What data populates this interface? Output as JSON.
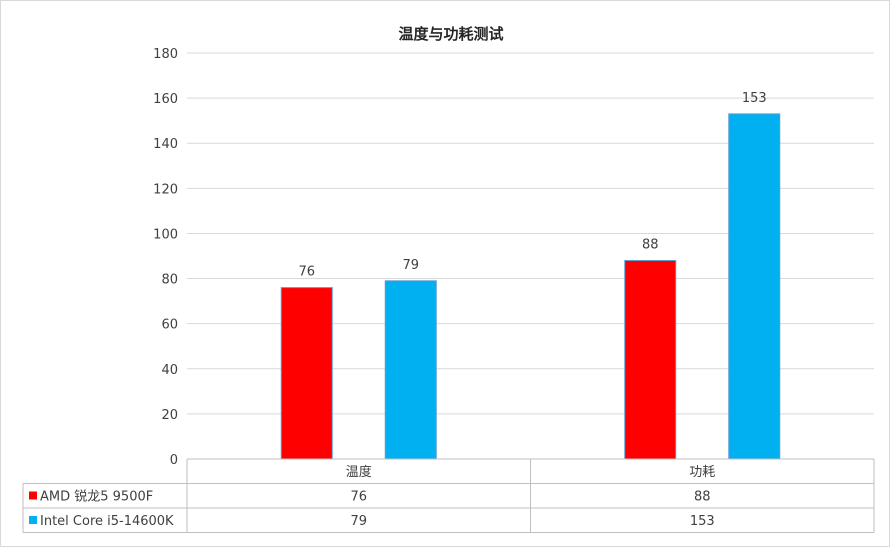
{
  "chart_data": {
    "type": "bar",
    "title": "温度与功耗测试",
    "categories": [
      "温度",
      "功耗"
    ],
    "series": [
      {
        "name": "AMD 锐龙5 9500F",
        "values": [
          76,
          88
        ],
        "color": "#ff0000"
      },
      {
        "name": "Intel Core i5-14600K",
        "values": [
          79,
          153
        ],
        "color": "#00b0f0"
      }
    ],
    "ylim": [
      0,
      180
    ],
    "yticks": [
      0,
      20,
      40,
      60,
      80,
      100,
      120,
      140,
      160,
      180
    ],
    "grid": true,
    "legend": "data-table"
  }
}
